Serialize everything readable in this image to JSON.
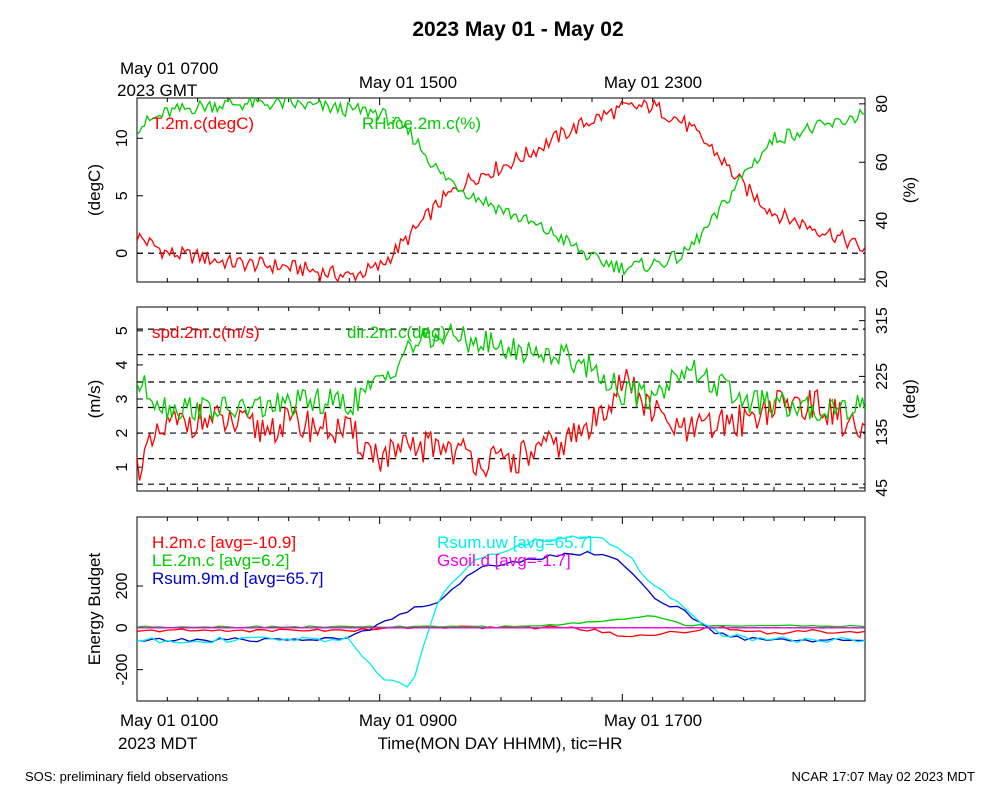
{
  "page": {
    "title": "2023 May 01 - May 02",
    "footer_left": "SOS: preliminary field observations",
    "footer_right": "NCAR 17:07 May 02 2023 MDT"
  },
  "top_axis": {
    "label_line1": "May 01 0700",
    "label_line2": "2023 GMT",
    "ticks": [
      "May 01 1500",
      "May 01 2300"
    ]
  },
  "bottom_axis": {
    "label_line1": "May 01 0100",
    "label_line2": "2023 MDT",
    "ticks": [
      "May 01 0900",
      "May 01 1700"
    ],
    "xlabel": "Time(MON DAY HHMM), tic=HR"
  },
  "chart_data": [
    {
      "type": "line",
      "x_range_hours_mdt": [
        "May 01 0100",
        "May 02 0100"
      ],
      "ylabel_left": "(degC)",
      "ylabel_right": "(%)",
      "ylim_left": [
        -2.5,
        13.5
      ],
      "ylim_right": [
        19,
        82
      ],
      "yticks_left": [
        "0",
        "5",
        "10"
      ],
      "yticks_right": [
        "20",
        "40",
        "60",
        "80"
      ],
      "reference_lines_left": [
        0
      ],
      "series": [
        {
          "name": "T.2m.c(degC)",
          "axis": "left",
          "color": "#ff0000",
          "x_hours": [
            0,
            1,
            2,
            3,
            4,
            5,
            6,
            7,
            8,
            9,
            10,
            11,
            12,
            13,
            14,
            15,
            16,
            17,
            18,
            19,
            20,
            21,
            22,
            23,
            24
          ],
          "values": [
            1.5,
            0.0,
            -0.3,
            -0.8,
            -1.0,
            -1.2,
            -1.6,
            -2.0,
            -1.2,
            1.5,
            4.5,
            6.5,
            7.5,
            8.8,
            10.3,
            11.6,
            12.6,
            12.8,
            11.4,
            9.0,
            5.8,
            3.5,
            2.5,
            1.6,
            0.3
          ]
        },
        {
          "name": "RH.ice.2m.c(%)",
          "axis": "right",
          "color": "#00cc00",
          "x_hours": [
            0,
            1,
            2,
            3,
            4,
            5,
            6,
            7,
            8,
            9,
            10,
            11,
            12,
            13,
            14,
            15,
            16,
            17,
            18,
            19,
            20,
            21,
            22,
            23,
            24
          ],
          "values": [
            72,
            77,
            79,
            80,
            80,
            80,
            79,
            78,
            77,
            70,
            56,
            49,
            44,
            39,
            34,
            27,
            24,
            25,
            28,
            40,
            56,
            68,
            71,
            73,
            77
          ]
        }
      ]
    },
    {
      "type": "line",
      "ylabel_left": "(m/s)",
      "ylabel_right": "(deg)",
      "ylim_left": [
        0.3,
        5.7
      ],
      "ylim_right": [
        40,
        337
      ],
      "yticks_left": [
        "1",
        "2",
        "3",
        "4",
        "5"
      ],
      "yticks_right": [
        "45",
        "135",
        "225",
        "315"
      ],
      "reference_lines_left": [
        0.5,
        1.25,
        2.0,
        2.75,
        3.5,
        4.3,
        5.05
      ],
      "series": [
        {
          "name": "spd.2m.c(m/s)",
          "axis": "left",
          "color": "#ff0000",
          "x_hours": [
            0,
            1,
            2,
            3,
            4,
            5,
            6,
            7,
            8,
            9,
            10,
            11,
            12,
            13,
            14,
            15,
            16,
            17,
            18,
            19,
            20,
            21,
            22,
            23,
            24
          ],
          "values": [
            1.0,
            2.2,
            2.4,
            2.3,
            2.1,
            2.3,
            2.2,
            2.0,
            1.3,
            1.5,
            1.7,
            1.3,
            1.1,
            1.4,
            1.7,
            2.2,
            3.6,
            2.6,
            2.0,
            2.2,
            2.4,
            2.8,
            2.9,
            2.6,
            1.8
          ]
        },
        {
          "name": "dir.2m.c(deg)",
          "axis": "right",
          "color": "#00cc00",
          "x_hours": [
            0,
            1,
            2,
            3,
            4,
            5,
            6,
            7,
            8,
            9,
            10,
            11,
            12,
            13,
            14,
            15,
            16,
            17,
            18,
            19,
            20,
            21,
            22,
            23,
            24
          ],
          "values": [
            215,
            175,
            175,
            170,
            175,
            180,
            185,
            180,
            215,
            275,
            290,
            285,
            270,
            265,
            260,
            240,
            200,
            190,
            240,
            215,
            185,
            180,
            170,
            175,
            180
          ]
        }
      ]
    },
    {
      "type": "line",
      "ylabel_left": "Energy Budget",
      "ylim_left": [
        -350,
        530
      ],
      "yticks_left": [
        "-200",
        "0",
        "200"
      ],
      "reference_lines_left": [
        0
      ],
      "legend": [
        "H.2m.c [avg=-10.9]",
        "LE.2m.c [avg=6.2]",
        "Rsum.9m.d [avg=65.7]",
        "Rsum.uw [avg=65.7]",
        "Gsoil.d [avg=-1.7]"
      ],
      "series": [
        {
          "name": "H.2m.c [avg=-10.9]",
          "color": "#ff0000",
          "x_hours": [
            0,
            1,
            2,
            3,
            4,
            5,
            6,
            7,
            8,
            9,
            10,
            11,
            12,
            13,
            14,
            15,
            16,
            17,
            18,
            19,
            20,
            21,
            22,
            23,
            24
          ],
          "values": [
            -20,
            -10,
            -15,
            -10,
            -15,
            -10,
            -10,
            -15,
            -5,
            5,
            5,
            0,
            5,
            0,
            5,
            -10,
            -40,
            -30,
            -20,
            5,
            -10,
            -25,
            -15,
            -20,
            -15
          ]
        },
        {
          "name": "LE.2m.c [avg=6.2]",
          "color": "#00cc00",
          "x_hours": [
            0,
            1,
            2,
            3,
            4,
            5,
            6,
            7,
            8,
            9,
            10,
            11,
            12,
            13,
            14,
            15,
            16,
            17,
            18,
            19,
            20,
            21,
            22,
            23,
            24
          ],
          "values": [
            5,
            5,
            5,
            5,
            5,
            5,
            5,
            5,
            5,
            5,
            5,
            5,
            5,
            10,
            15,
            30,
            40,
            60,
            15,
            10,
            10,
            10,
            10,
            10,
            5
          ]
        },
        {
          "name": "Rsum.9m.d [avg=65.7]",
          "color": "#0000cc",
          "x_hours": [
            0,
            1,
            2,
            3,
            4,
            5,
            6,
            7,
            8,
            9,
            10,
            11,
            12,
            13,
            14,
            15,
            16,
            17,
            18,
            19,
            20,
            21,
            22,
            23,
            24
          ],
          "values": [
            -60,
            -60,
            -58,
            -58,
            -57,
            -55,
            -55,
            -50,
            20,
            90,
            120,
            270,
            310,
            330,
            350,
            360,
            310,
            150,
            80,
            -20,
            -50,
            -55,
            -58,
            -60,
            -60
          ]
        },
        {
          "name": "Rsum.uw [avg=65.7]",
          "color": "#00eeee",
          "x_hours": [
            0,
            1,
            2,
            3,
            4,
            5,
            6,
            7,
            8,
            9,
            10,
            11,
            12,
            13,
            14,
            15,
            16,
            17,
            18,
            19,
            20,
            21,
            22,
            23,
            24
          ],
          "values": [
            -60,
            -60,
            -58,
            -58,
            -57,
            -55,
            -55,
            -50,
            -230,
            -300,
            160,
            320,
            360,
            410,
            430,
            440,
            380,
            210,
            100,
            -20,
            -50,
            -55,
            -58,
            -60,
            -60
          ]
        },
        {
          "name": "Gsoil.d [avg=-1.7]",
          "color": "#ee00ee",
          "x_hours": [
            0,
            4,
            8,
            12,
            16,
            20,
            24
          ],
          "values": [
            0,
            0,
            0,
            0,
            0,
            0,
            0
          ]
        }
      ]
    }
  ]
}
